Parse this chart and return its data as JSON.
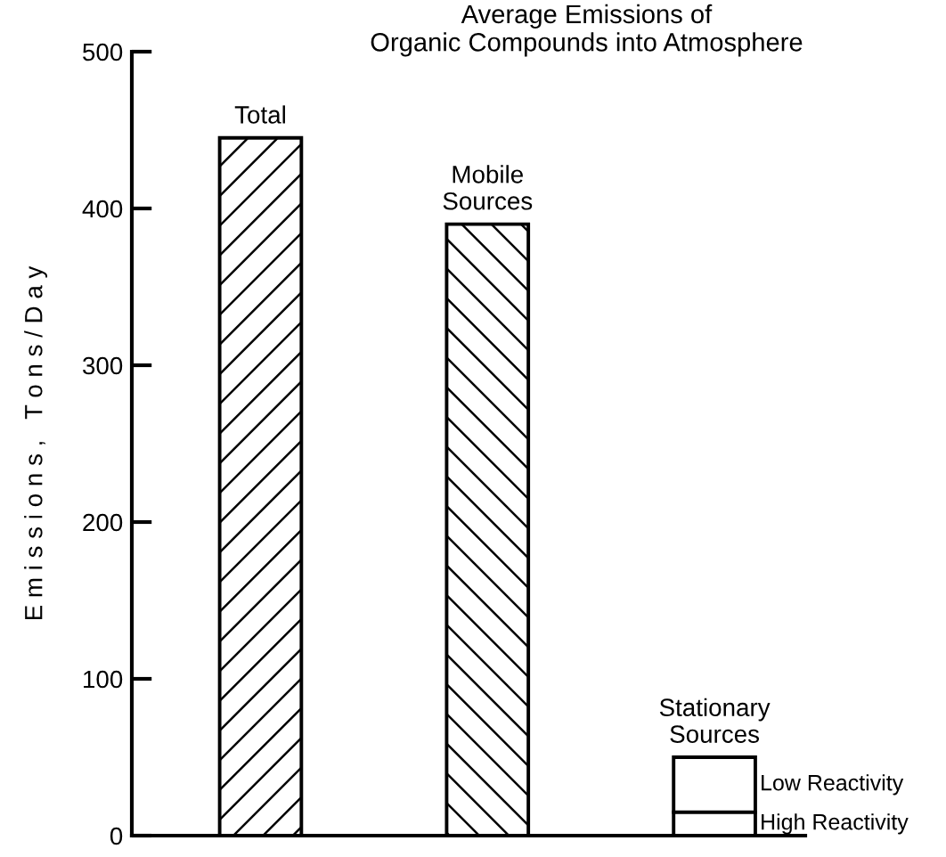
{
  "chart_data": {
    "type": "bar",
    "title": "Average Emissions of\nOrganic Compounds into Atmosphere",
    "ylabel": "E m i s s i o n s ,   T o n s / D a y",
    "categories": [
      "Total",
      "Mobile\nSources",
      "Stationary\nSources"
    ],
    "stacked": true,
    "series": [
      {
        "values": [
          445,
          390,
          null
        ],
        "color": "#000000"
      },
      {
        "name": "High Reactivity",
        "values": [
          null,
          null,
          15
        ],
        "color": "#ffffff"
      },
      {
        "name": "Low Reactivity",
        "values": [
          null,
          null,
          35
        ],
        "color": "#ffffff"
      }
    ],
    "ylim": [
      0,
      500
    ],
    "yticks": [
      0,
      100,
      200,
      300,
      400,
      500
    ],
    "grid": false,
    "legend": false
  }
}
